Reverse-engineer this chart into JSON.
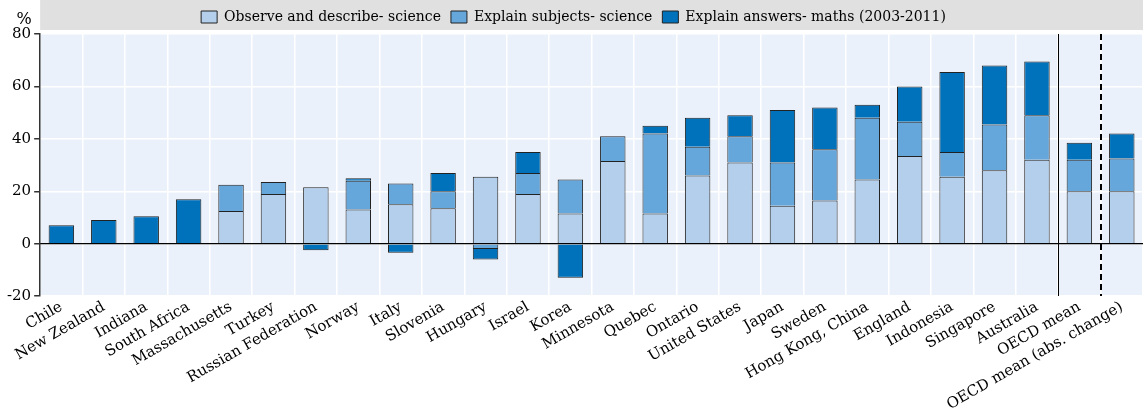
{
  "chart_data": {
    "type": "bar",
    "stacked": true,
    "ylabel": "%",
    "categories": [
      "Chile",
      "New Zealand",
      "Indiana",
      "South Africa",
      "Massachusetts",
      "Turkey",
      "Russian Federation",
      "Norway",
      "Italy",
      "Slovenia",
      "Hungary",
      "Israel",
      "Korea",
      "Minnesota",
      "Quebec",
      "Ontario",
      "United States",
      "Japan",
      "Sweden",
      "Hong Kong, China",
      "England",
      "Indonesia",
      "Singapore",
      "Australia",
      "OECD mean",
      "OECD mean (abs. change)"
    ],
    "series": [
      {
        "name": "Observe and describe- science",
        "color": "#b4cfec",
        "values": [
          null,
          null,
          null,
          null,
          12.5,
          19,
          21.5,
          13,
          15,
          13.5,
          25.5,
          19,
          11.5,
          31.5,
          11.5,
          26,
          31,
          14.5,
          16.5,
          24.5,
          33.5,
          25.5,
          28,
          32,
          20,
          20
        ]
      },
      {
        "name": "Explain subjects- science",
        "color": "#65a6db",
        "values": [
          null,
          null,
          null,
          null,
          10,
          4.5,
          null,
          11,
          8,
          6.5,
          -2,
          8,
          13,
          9.5,
          30.5,
          11,
          10,
          16.5,
          19.5,
          23.5,
          13,
          9.5,
          17.5,
          17,
          12,
          12.5
        ]
      },
      {
        "name": "Explain answers- maths (2003-2011)",
        "color": "#0072bc",
        "values": [
          7,
          9,
          10.5,
          17,
          null,
          null,
          -2.5,
          1,
          -3.5,
          7,
          -4,
          8,
          -13,
          null,
          3,
          11,
          8,
          20,
          16,
          5,
          13.5,
          30.5,
          22.5,
          20.5,
          6.5,
          9.5
        ]
      }
    ],
    "ylim": [
      -20,
      80
    ],
    "yticks": [
      -20,
      0,
      20,
      40,
      60,
      80
    ],
    "grid": true,
    "legend": "top"
  }
}
